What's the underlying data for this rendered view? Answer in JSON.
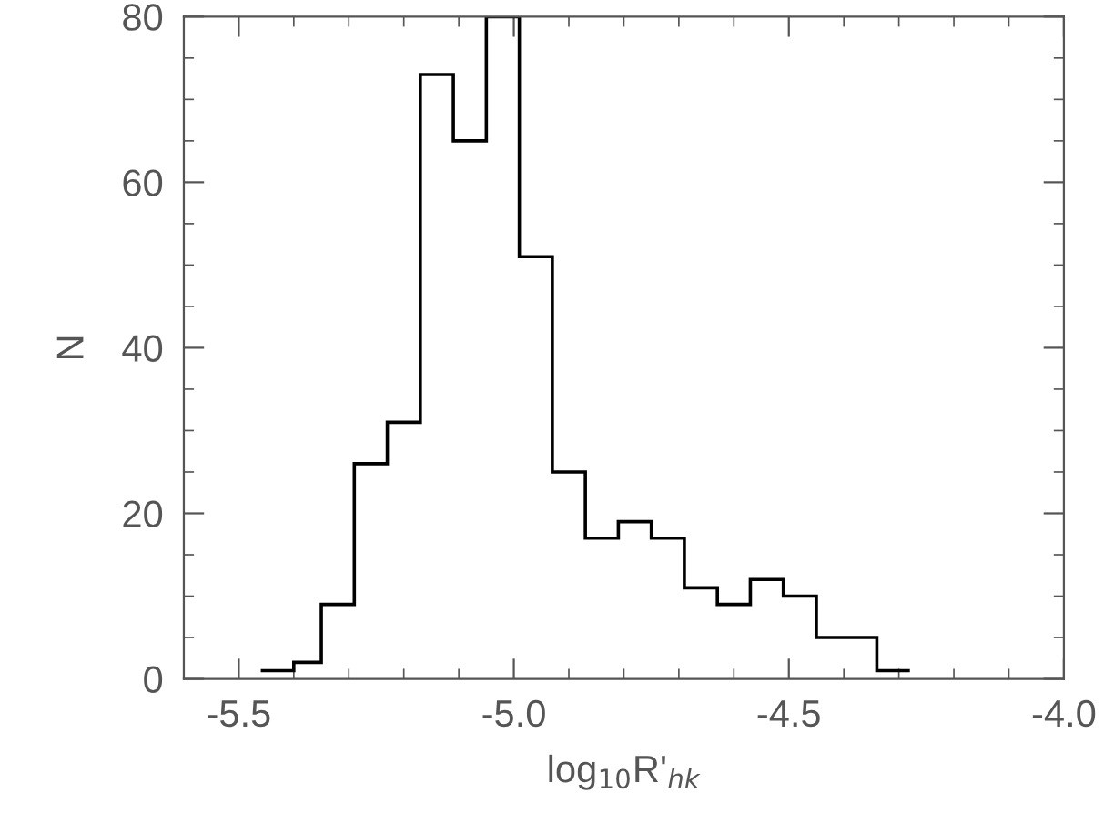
{
  "chart_data": {
    "type": "histogram",
    "xlabel": "log$_{10}$R'$_{hk}$",
    "ylabel": "N",
    "bins": [
      -5.46,
      -5.4,
      -5.35,
      -5.29,
      -5.23,
      -5.17,
      -5.11,
      -5.05,
      -4.99,
      -4.93,
      -4.87,
      -4.81,
      -4.75,
      -4.69,
      -4.63,
      -4.57,
      -4.51,
      -4.45,
      -4.39,
      -4.34,
      -4.28
    ],
    "values": [
      1,
      2,
      9,
      26,
      31,
      73,
      65,
      80,
      51,
      25,
      17,
      19,
      17,
      11,
      9,
      12,
      10,
      5,
      5,
      1
    ],
    "color": "#000000",
    "xlim": [
      -5.6,
      -4.0
    ],
    "ylim": [
      0,
      80
    ],
    "xticks": [
      {
        "value": -5.5,
        "label": "-5.5"
      },
      {
        "value": -5.0,
        "label": "-5.0"
      },
      {
        "value": -4.5,
        "label": "-4.5"
      },
      {
        "value": -4.0,
        "label": "-4.0"
      }
    ],
    "yticks": [
      0,
      20,
      40,
      60,
      80
    ],
    "grid": false
  }
}
